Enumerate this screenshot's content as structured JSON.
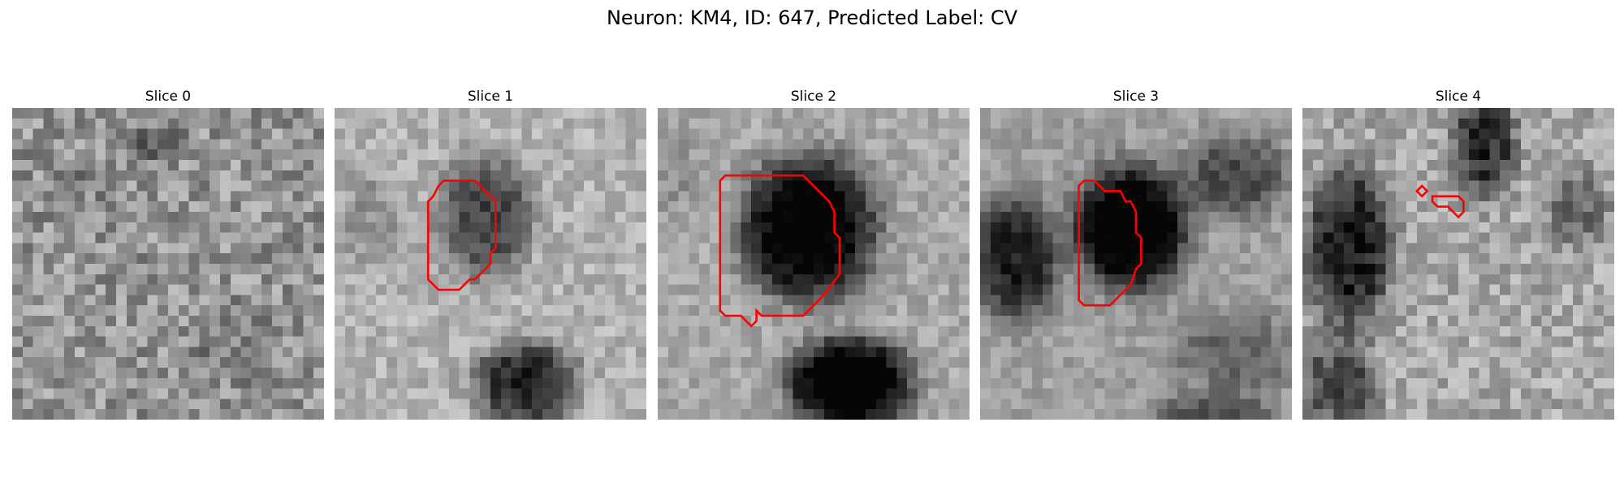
{
  "figure": {
    "title": "Neuron: KM4, ID: 647, Predicted Label: CV",
    "contour_color": "#ff0000"
  },
  "panels": [
    {
      "title": "Slice 0"
    },
    {
      "title": "Slice 1"
    },
    {
      "title": "Slice 2"
    },
    {
      "title": "Slice 3"
    },
    {
      "title": "Slice 4"
    }
  ]
}
